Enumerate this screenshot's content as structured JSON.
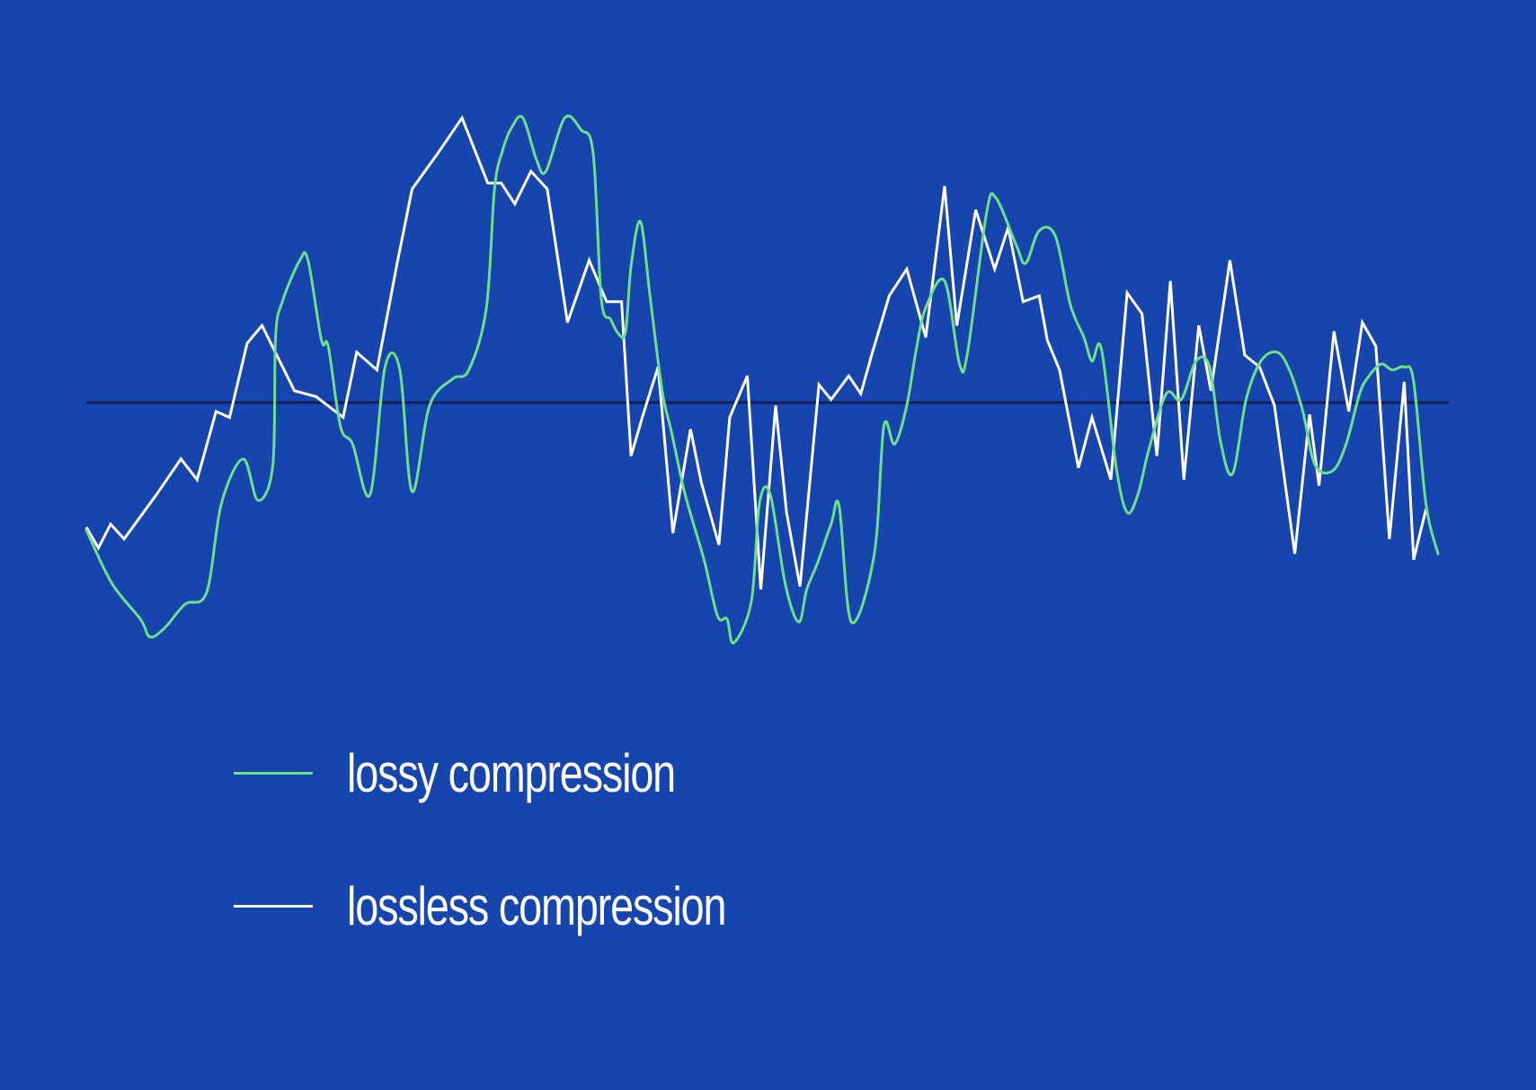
{
  "colors": {
    "background": "#1545ad",
    "lossy": "#6ee08a",
    "lossless": "#ffffff",
    "baseline": "#0f1f5c"
  },
  "chart_data": {
    "type": "line",
    "title": "",
    "xlabel": "",
    "ylabel": "",
    "xlim": [
      0,
      1
    ],
    "ylim": [
      -1,
      1
    ],
    "grid": false,
    "legend_position": "bottom-left",
    "baseline": 0,
    "series": [
      {
        "name": "lossy compression",
        "color": "#6ee08a",
        "smooth": true,
        "x": [
          0,
          0.019,
          0.04,
          0.047,
          0.058,
          0.073,
          0.089,
          0.1,
          0.116,
          0.127,
          0.138,
          0.14,
          0.145,
          0.158,
          0.164,
          0.174,
          0.179,
          0.188,
          0.197,
          0.21,
          0.221,
          0.232,
          0.241,
          0.254,
          0.271,
          0.283,
          0.296,
          0.302,
          0.308,
          0.315,
          0.323,
          0.333,
          0.34,
          0.354,
          0.366,
          0.375,
          0.381,
          0.388,
          0.394,
          0.399,
          0.403,
          0.41,
          0.417,
          0.426,
          0.433,
          0.443,
          0.457,
          0.467,
          0.474,
          0.479,
          0.492,
          0.498,
          0.506,
          0.517,
          0.527,
          0.533,
          0.541,
          0.551,
          0.557,
          0.566,
          0.583,
          0.59,
          0.598,
          0.607,
          0.614,
          0.621,
          0.635,
          0.646,
          0.652,
          0.666,
          0.673,
          0.688,
          0.695,
          0.705,
          0.717,
          0.728,
          0.738,
          0.744,
          0.751,
          0.762,
          0.77,
          0.778,
          0.786,
          0.799,
          0.81,
          0.821,
          0.831,
          0.839,
          0.848,
          0.858,
          0.869,
          0.881,
          0.89,
          0.9,
          0.909,
          0.922,
          0.932,
          0.942,
          0.949,
          0.958,
          0.966,
          0.975,
          0.982,
          0.991,
          1
        ],
        "y": [
          -0.43,
          -0.61,
          -0.73,
          -0.79,
          -0.76,
          -0.68,
          -0.64,
          -0.34,
          -0.19,
          -0.33,
          -0.21,
          0.22,
          0.34,
          0.48,
          0.48,
          0.21,
          0.19,
          -0.08,
          -0.14,
          -0.31,
          0.12,
          0.11,
          -0.3,
          -0.01,
          0.08,
          0.11,
          0.32,
          0.72,
          0.85,
          0.93,
          0.96,
          0.82,
          0.78,
          0.96,
          0.92,
          0.84,
          0.35,
          0.28,
          0.23,
          0.24,
          0.46,
          0.61,
          0.36,
          0.04,
          -0.1,
          -0.31,
          -0.53,
          -0.72,
          -0.73,
          -0.81,
          -0.67,
          -0.34,
          -0.31,
          -0.61,
          -0.74,
          -0.63,
          -0.54,
          -0.41,
          -0.35,
          -0.74,
          -0.51,
          -0.08,
          -0.14,
          -0.01,
          0.18,
          0.32,
          0.41,
          0.13,
          0.17,
          0.64,
          0.69,
          0.53,
          0.47,
          0.58,
          0.56,
          0.33,
          0.22,
          0.14,
          0.18,
          -0.22,
          -0.37,
          -0.31,
          -0.16,
          0.03,
          0.01,
          0.14,
          0.12,
          -0.13,
          -0.24,
          0.01,
          0.14,
          0.17,
          0.11,
          -0.03,
          -0.21,
          -0.23,
          -0.14,
          0.03,
          0.09,
          0.13,
          0.11,
          0.12,
          0.07,
          -0.34,
          -0.51
        ]
      },
      {
        "name": "lossless compression",
        "color": "#ffffff",
        "smooth": false,
        "x": [
          0,
          0.009,
          0.018,
          0.028,
          0.052,
          0.07,
          0.082,
          0.096,
          0.106,
          0.119,
          0.13,
          0.154,
          0.17,
          0.19,
          0.2,
          0.215,
          0.23,
          0.241,
          0.26,
          0.278,
          0.297,
          0.307,
          0.317,
          0.329,
          0.341,
          0.356,
          0.372,
          0.385,
          0.396,
          0.403,
          0.412,
          0.423,
          0.434,
          0.447,
          0.455,
          0.468,
          0.476,
          0.489,
          0.499,
          0.51,
          0.518,
          0.528,
          0.542,
          0.551,
          0.564,
          0.573,
          0.581,
          0.594,
          0.607,
          0.621,
          0.635,
          0.644,
          0.658,
          0.672,
          0.682,
          0.693,
          0.705,
          0.711,
          0.72,
          0.734,
          0.744,
          0.758,
          0.77,
          0.781,
          0.792,
          0.802,
          0.812,
          0.823,
          0.832,
          0.846,
          0.857,
          0.868,
          0.879,
          0.894,
          0.905,
          0.912,
          0.923,
          0.934,
          0.944,
          0.954,
          0.964,
          0.975,
          0.982,
          0.991
        ],
        "y": [
          -0.42,
          -0.49,
          -0.41,
          -0.46,
          -0.31,
          -0.19,
          -0.26,
          -0.03,
          -0.05,
          0.2,
          0.26,
          0.04,
          0.02,
          -0.05,
          0.17,
          0.11,
          0.47,
          0.72,
          0.84,
          0.96,
          0.74,
          0.74,
          0.67,
          0.78,
          0.72,
          0.27,
          0.48,
          0.34,
          0.34,
          -0.18,
          -0.04,
          0.12,
          -0.44,
          -0.09,
          -0.27,
          -0.48,
          -0.05,
          0.09,
          -0.63,
          -0.01,
          -0.37,
          -0.62,
          0.06,
          0.01,
          0.09,
          0.03,
          0.16,
          0.36,
          0.45,
          0.22,
          0.73,
          0.26,
          0.65,
          0.45,
          0.59,
          0.34,
          0.36,
          0.21,
          0.11,
          -0.22,
          -0.05,
          -0.26,
          0.37,
          0.3,
          -0.18,
          0.41,
          -0.26,
          0.26,
          0.04,
          0.48,
          0.16,
          0.12,
          -0.01,
          -0.51,
          -0.04,
          -0.28,
          0.24,
          -0.03,
          0.27,
          0.19,
          -0.46,
          0.07,
          -0.53,
          -0.36
        ]
      }
    ]
  },
  "legend": {
    "items": [
      {
        "label": "lossy compression",
        "color": "#6ee08a"
      },
      {
        "label": "lossless compression",
        "color": "#ffffff"
      }
    ]
  }
}
